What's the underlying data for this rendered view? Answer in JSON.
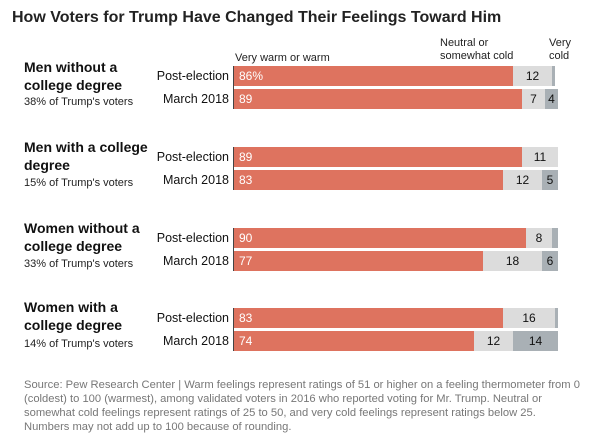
{
  "title": "How Voters for Trump Have Changed Their Feelings Toward Him",
  "legend": {
    "warm": "Very warm or warm",
    "neutral": "Neutral or somewhat cold",
    "cold": "Very cold"
  },
  "source_note": "Source: Pew Research Center | Warm feelings represent ratings of 51 or higher on a feeling thermometer from 0 (coldest) to 100 (warmest), among validated voters in 2016 who reported voting for Mr. Trump. Neutral or somewhat cold feelings represent ratings of 25 to 50, and very cold feelings represent ratings below 25. Numbers may not add up to 100 because of rounding.",
  "colors": {
    "warm": "#de735f",
    "neutral": "#dcdcdc",
    "cold": "#a9b0b5"
  },
  "chart_data": {
    "type": "bar",
    "orientation": "horizontal",
    "stacked": true,
    "title": "How Voters for Trump Have Changed Their Feelings Toward Him",
    "xlim": [
      0,
      100
    ],
    "series_names": [
      "Very warm or warm",
      "Neutral or somewhat cold",
      "Very cold"
    ],
    "groups": [
      {
        "name": "Men without a college degree",
        "share": "38% of Trump's voters",
        "rows": [
          {
            "label": "Post-election",
            "warm": 86,
            "warm_label": "86%",
            "neutral": 12,
            "neutral_label": "12",
            "cold": 1,
            "cold_label": ""
          },
          {
            "label": "March 2018",
            "warm": 89,
            "warm_label": "89",
            "neutral": 7,
            "neutral_label": "7",
            "cold": 4,
            "cold_label": "4"
          }
        ]
      },
      {
        "name": "Men with a college degree",
        "share": "15% of Trump's voters",
        "rows": [
          {
            "label": "Post-election",
            "warm": 89,
            "warm_label": "89",
            "neutral": 11,
            "neutral_label": "11",
            "cold": 1,
            "cold_label": ""
          },
          {
            "label": "March 2018",
            "warm": 83,
            "warm_label": "83",
            "neutral": 12,
            "neutral_label": "12",
            "cold": 5,
            "cold_label": "5"
          }
        ]
      },
      {
        "name": "Women without a college degree",
        "share": "33% of Trump's voters",
        "rows": [
          {
            "label": "Post-election",
            "warm": 90,
            "warm_label": "90",
            "neutral": 8,
            "neutral_label": "8",
            "cold": 2,
            "cold_label": ""
          },
          {
            "label": "March 2018",
            "warm": 77,
            "warm_label": "77",
            "neutral": 18,
            "neutral_label": "18",
            "cold": 6,
            "cold_label": "6"
          }
        ]
      },
      {
        "name": "Women with a college degree",
        "share": "14% of Trump's voters",
        "rows": [
          {
            "label": "Post-election",
            "warm": 83,
            "warm_label": "83",
            "neutral": 16,
            "neutral_label": "16",
            "cold": 1,
            "cold_label": ""
          },
          {
            "label": "March 2018",
            "warm": 74,
            "warm_label": "74",
            "neutral": 12,
            "neutral_label": "12",
            "cold": 14,
            "cold_label": "14"
          }
        ]
      }
    ]
  }
}
